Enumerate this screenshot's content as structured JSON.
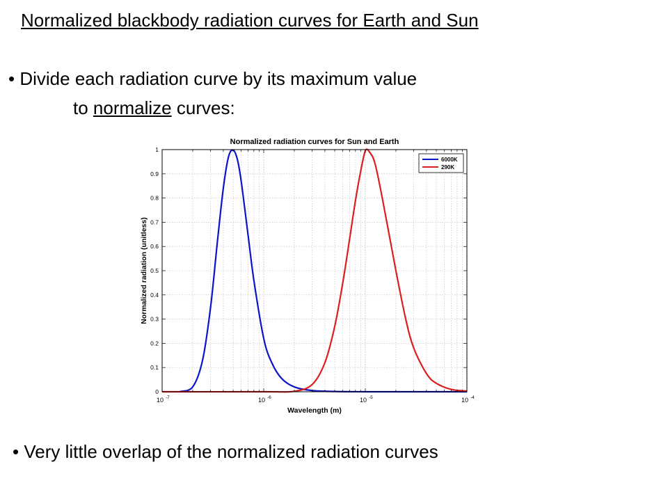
{
  "slide": {
    "title": "Normalized blackbody radiation curves for Earth and Sun",
    "bullet1_part1": "Divide each radiation curve by its maximum value",
    "bullet1_part2_pre": "to ",
    "bullet1_part2_underlined": "normalize",
    "bullet1_part2_post": " curves:",
    "bullet2": "Very little overlap of the normalized radiation curves",
    "bullet_symbol": "•"
  },
  "chart_data": {
    "type": "line",
    "title": "Normalized radiation curves for Sun and Earth",
    "xlabel": "Wavelength (m)",
    "ylabel": "Normalized radiation (unitless)",
    "x_scale": "log",
    "xlim": [
      1e-07,
      0.0001
    ],
    "ylim": [
      0,
      1
    ],
    "grid": true,
    "legend_position": "top-right",
    "x_ticks": [
      {
        "base": "10",
        "exp": "-7"
      },
      {
        "base": "10",
        "exp": "-6"
      },
      {
        "base": "10",
        "exp": "-5"
      },
      {
        "base": "10",
        "exp": "-4"
      }
    ],
    "y_ticks": [
      "0",
      "0.1",
      "0.2",
      "0.3",
      "0.4",
      "0.5",
      "0.6",
      "0.7",
      "0.8",
      "0.9",
      "1"
    ],
    "series": [
      {
        "name": "6000K",
        "color": "#0a14c8",
        "points": [
          [
            1.5e-07,
            0.001
          ],
          [
            2e-07,
            0.02
          ],
          [
            2.5e-07,
            0.13
          ],
          [
            3e-07,
            0.35
          ],
          [
            3.5e-07,
            0.62
          ],
          [
            4e-07,
            0.84
          ],
          [
            4.5e-07,
            0.97
          ],
          [
            5e-07,
            0.998
          ],
          [
            5.5e-07,
            0.96
          ],
          [
            6e-07,
            0.87
          ],
          [
            7e-07,
            0.65
          ],
          [
            8e-07,
            0.46
          ],
          [
            1e-06,
            0.22
          ],
          [
            1.2e-06,
            0.12
          ],
          [
            1.5e-06,
            0.055
          ],
          [
            2e-06,
            0.02
          ],
          [
            3e-06,
            0.005
          ],
          [
            5e-06,
            0.001
          ],
          [
            1e-05,
            0.0001
          ],
          [
            0.0001,
            0.0
          ]
        ]
      },
      {
        "name": "290K",
        "color": "#dc1e1e",
        "points": [
          [
            1e-07,
            0.0
          ],
          [
            1e-06,
            0.0
          ],
          [
            2e-06,
            0.002
          ],
          [
            3e-06,
            0.03
          ],
          [
            4e-06,
            0.12
          ],
          [
            5e-06,
            0.27
          ],
          [
            6e-06,
            0.45
          ],
          [
            7e-06,
            0.63
          ],
          [
            8e-06,
            0.79
          ],
          [
            9e-06,
            0.91
          ],
          [
            1e-05,
            0.995
          ],
          [
            1.1e-05,
            0.99
          ],
          [
            1.25e-05,
            0.94
          ],
          [
            1.5e-05,
            0.78
          ],
          [
            2e-05,
            0.5
          ],
          [
            2.5e-05,
            0.3
          ],
          [
            3e-05,
            0.18
          ],
          [
            4e-05,
            0.075
          ],
          [
            5e-05,
            0.035
          ],
          [
            7e-05,
            0.01
          ],
          [
            0.0001,
            0.003
          ]
        ]
      }
    ]
  }
}
